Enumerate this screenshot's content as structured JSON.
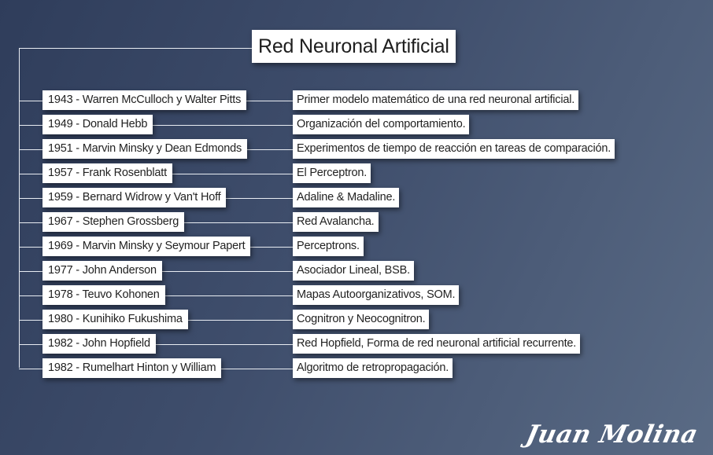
{
  "title": "Red Neuronal Artificial",
  "timeline": [
    {
      "event": "1943 - Warren McCulloch y Walter Pitts",
      "contribution": "Primer modelo matemático de una red neuronal artificial."
    },
    {
      "event": "1949 - Donald Hebb",
      "contribution": "Organización del comportamiento."
    },
    {
      "event": "1951 - Marvin Minsky y Dean Edmonds",
      "contribution": "Experimentos de tiempo de reacción en tareas de comparación."
    },
    {
      "event": "1957 - Frank Rosenblatt",
      "contribution": "El Perceptron."
    },
    {
      "event": "1959 - Bernard Widrow y Van't Hoff",
      "contribution": "Adaline & Madaline."
    },
    {
      "event": "1967 - Stephen Grossberg",
      "contribution": "Red Avalancha."
    },
    {
      "event": "1969 - Marvin Minsky y Seymour Papert",
      "contribution": "Perceptrons."
    },
    {
      "event": "1977 - John Anderson",
      "contribution": "Asociador Lineal, BSB."
    },
    {
      "event": "1978 - Teuvo Kohonen",
      "contribution": "Mapas Autoorganizativos, SOM."
    },
    {
      "event": "1980 - Kunihiko Fukushima",
      "contribution": "Cognitron y Neocognitron."
    },
    {
      "event": "1982 - John Hopfield",
      "contribution": "Red Hopfield, Forma de red neuronal artificial recurrente."
    },
    {
      "event": "1982 - Rumelhart Hinton y William",
      "contribution": "Algoritmo de retropropagación."
    }
  ],
  "signature": "Juan Molina",
  "colors": {
    "background_start": "#2f3d5b",
    "background_end": "#5a6b85",
    "box": "#ffffff",
    "connector": "#e9edf3"
  }
}
